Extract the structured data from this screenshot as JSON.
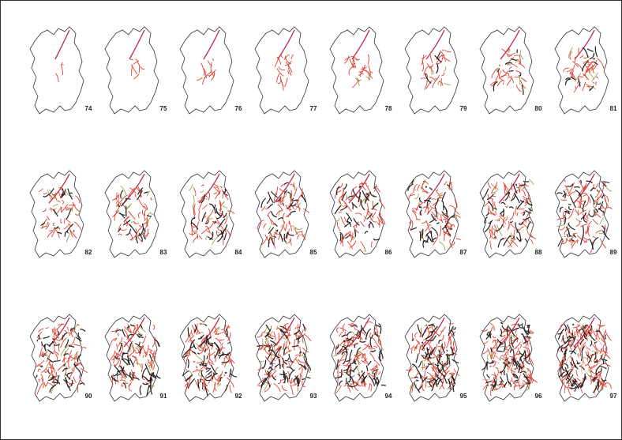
{
  "panels": [
    {
      "label": "74"
    },
    {
      "label": "75"
    },
    {
      "label": "76"
    },
    {
      "label": "77"
    },
    {
      "label": "78"
    },
    {
      "label": "79"
    },
    {
      "label": "80"
    },
    {
      "label": "81"
    },
    {
      "label": "82"
    },
    {
      "label": "83"
    },
    {
      "label": "84"
    },
    {
      "label": "85"
    },
    {
      "label": "86"
    },
    {
      "label": "87"
    },
    {
      "label": "88"
    },
    {
      "label": "89"
    },
    {
      "label": "90"
    },
    {
      "label": "91"
    },
    {
      "label": "92"
    },
    {
      "label": "93"
    },
    {
      "label": "94"
    },
    {
      "label": "95"
    },
    {
      "label": "96"
    },
    {
      "label": "97"
    }
  ]
}
